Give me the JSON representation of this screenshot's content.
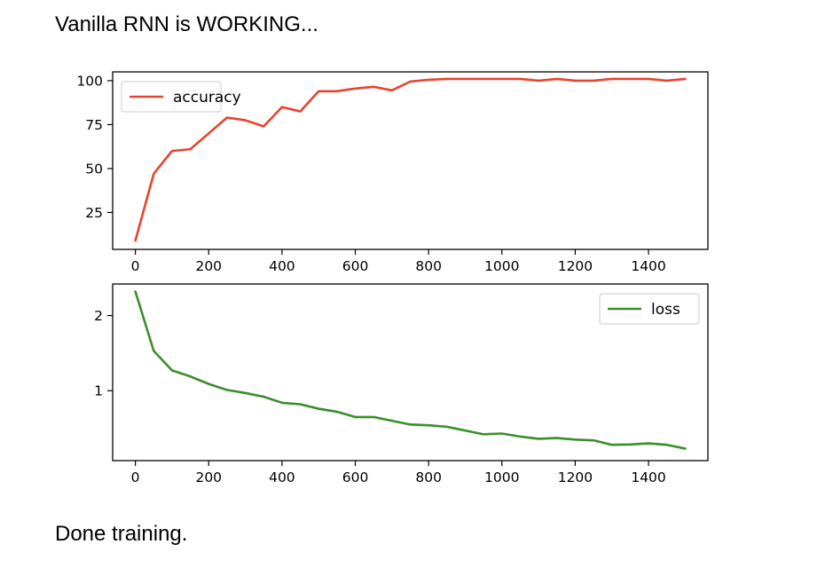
{
  "status": {
    "top": "Vanilla RNN is WORKING...",
    "bottom": "Done training."
  },
  "chart_data": [
    {
      "type": "line",
      "title": "",
      "xlabel": "",
      "ylabel": "",
      "xlim": [
        -62,
        1562
      ],
      "ylim": [
        4,
        105
      ],
      "xticks": [
        0,
        200,
        400,
        600,
        800,
        1000,
        1200,
        1400
      ],
      "xtick_labels": [
        "0",
        "200",
        "400",
        "600",
        "800",
        "1000",
        "1200",
        "1400"
      ],
      "yticks": [
        25,
        50,
        75,
        100
      ],
      "ytick_labels": [
        "25",
        "50",
        "75",
        "100"
      ],
      "grid": false,
      "legend": "upper-left",
      "series": [
        {
          "name": "accuracy",
          "color": "#e8432e",
          "x": [
            0,
            50,
            100,
            150,
            200,
            250,
            300,
            350,
            400,
            450,
            500,
            550,
            600,
            650,
            700,
            750,
            800,
            850,
            900,
            950,
            1000,
            1050,
            1100,
            1150,
            1200,
            1250,
            1300,
            1350,
            1400,
            1450,
            1500
          ],
          "y": [
            9,
            47,
            60,
            61,
            70,
            79,
            77.5,
            74,
            85,
            82.5,
            94,
            94,
            95.5,
            96.5,
            94.5,
            99.5,
            100.5,
            101,
            101,
            101,
            101,
            101,
            100,
            101,
            100,
            100,
            101,
            101,
            101,
            100,
            101
          ]
        }
      ]
    },
    {
      "type": "line",
      "title": "",
      "xlabel": "",
      "ylabel": "",
      "xlim": [
        -62,
        1562
      ],
      "ylim": [
        0.07,
        2.42
      ],
      "xticks": [
        0,
        200,
        400,
        600,
        800,
        1000,
        1200,
        1400
      ],
      "xtick_labels": [
        "0",
        "200",
        "400",
        "600",
        "800",
        "1000",
        "1200",
        "1400"
      ],
      "yticks": [
        1,
        2
      ],
      "ytick_labels": [
        "1",
        "2"
      ],
      "grid": false,
      "legend": "upper-right",
      "series": [
        {
          "name": "loss",
          "color": "#3a8e2a",
          "x": [
            0,
            50,
            100,
            150,
            200,
            250,
            300,
            350,
            400,
            450,
            500,
            550,
            600,
            650,
            700,
            750,
            800,
            850,
            900,
            950,
            1000,
            1050,
            1100,
            1150,
            1200,
            1250,
            1300,
            1350,
            1400,
            1450,
            1500
          ],
          "y": [
            2.32,
            1.53,
            1.27,
            1.19,
            1.09,
            1.01,
            0.97,
            0.92,
            0.84,
            0.82,
            0.76,
            0.72,
            0.65,
            0.65,
            0.6,
            0.55,
            0.54,
            0.52,
            0.47,
            0.42,
            0.43,
            0.39,
            0.36,
            0.37,
            0.35,
            0.34,
            0.28,
            0.285,
            0.3,
            0.28,
            0.23
          ]
        }
      ]
    }
  ]
}
